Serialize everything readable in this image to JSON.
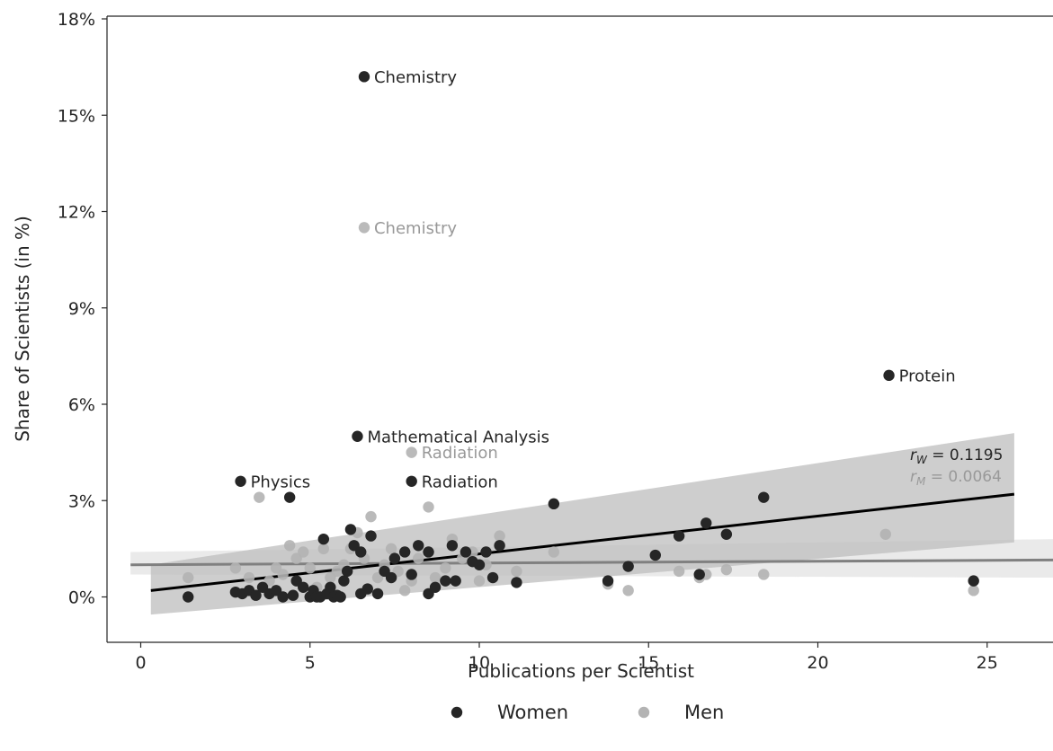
{
  "chart_data": {
    "type": "scatter",
    "xlabel": "Publications per Scientist",
    "ylabel": "Share of Scientists (in %)",
    "xlim": [
      -1,
      27
    ],
    "ylim": [
      -1.3,
      18
    ],
    "xticks": [
      0,
      5,
      10,
      15,
      20,
      25
    ],
    "yticks": [
      0,
      3,
      6,
      9,
      12,
      15,
      18
    ],
    "ytick_format": "%",
    "grid": false,
    "legend": {
      "placement": "bottom-center",
      "entries": [
        "Women",
        "Men"
      ]
    },
    "colors": {
      "women": "#262626",
      "men": "#b3b3b3",
      "women_line": "#000000",
      "men_line": "#808080",
      "women_band": "#bdbdbd",
      "men_band": "#e3e3e3"
    },
    "series": [
      {
        "name": "Women",
        "points": [
          [
            1.4,
            0.0
          ],
          [
            2.8,
            0.15
          ],
          [
            3.0,
            0.1
          ],
          [
            3.2,
            0.2
          ],
          [
            3.4,
            0.05
          ],
          [
            3.6,
            0.3
          ],
          [
            3.8,
            0.1
          ],
          [
            4.0,
            0.2
          ],
          [
            4.2,
            0.0
          ],
          [
            4.4,
            3.1
          ],
          [
            4.5,
            0.05
          ],
          [
            4.6,
            0.5
          ],
          [
            4.8,
            0.3
          ],
          [
            5.0,
            0.0
          ],
          [
            5.1,
            0.2
          ],
          [
            5.2,
            0.0
          ],
          [
            5.3,
            0.0
          ],
          [
            5.4,
            1.8
          ],
          [
            5.5,
            0.1
          ],
          [
            5.6,
            0.3
          ],
          [
            5.7,
            0.0
          ],
          [
            5.8,
            0.05
          ],
          [
            5.9,
            0.0
          ],
          [
            6.0,
            0.5
          ],
          [
            6.1,
            0.8
          ],
          [
            6.2,
            2.1
          ],
          [
            6.3,
            1.6
          ],
          [
            6.5,
            1.4
          ],
          [
            6.5,
            0.1
          ],
          [
            6.7,
            0.25
          ],
          [
            6.8,
            1.9
          ],
          [
            7.0,
            0.1
          ],
          [
            7.2,
            0.8
          ],
          [
            7.4,
            0.6
          ],
          [
            7.5,
            1.2
          ],
          [
            7.8,
            1.4
          ],
          [
            8.0,
            0.7
          ],
          [
            8.2,
            1.6
          ],
          [
            8.5,
            0.1
          ],
          [
            8.5,
            1.4
          ],
          [
            8.7,
            0.3
          ],
          [
            9.0,
            0.5
          ],
          [
            9.2,
            1.6
          ],
          [
            9.3,
            0.5
          ],
          [
            9.6,
            1.4
          ],
          [
            9.8,
            1.1
          ],
          [
            10.0,
            1.0
          ],
          [
            10.2,
            1.4
          ],
          [
            10.4,
            0.6
          ],
          [
            10.6,
            1.6
          ],
          [
            11.1,
            0.45
          ],
          [
            12.2,
            2.9
          ],
          [
            13.8,
            0.5
          ],
          [
            14.4,
            0.95
          ],
          [
            15.2,
            1.3
          ],
          [
            15.9,
            1.9
          ],
          [
            16.5,
            0.7
          ],
          [
            16.7,
            2.3
          ],
          [
            17.3,
            1.95
          ],
          [
            18.4,
            3.1
          ],
          [
            24.6,
            0.5
          ],
          [
            2.95,
            3.6
          ],
          [
            6.6,
            16.2
          ],
          [
            6.4,
            5.0
          ],
          [
            8.0,
            3.6
          ],
          [
            22.1,
            6.9
          ]
        ],
        "annotations": [
          {
            "text": "Physics",
            "x": 2.95,
            "y": 3.6
          },
          {
            "text": "Chemistry",
            "x": 6.6,
            "y": 16.2
          },
          {
            "text": "Mathematical Analysis",
            "x": 6.4,
            "y": 5.0
          },
          {
            "text": "Radiation",
            "x": 8.0,
            "y": 3.6
          },
          {
            "text": "Protein",
            "x": 22.1,
            "y": 6.9
          }
        ],
        "regression": {
          "x0": 0.3,
          "y0": 0.2,
          "x1": 25.8,
          "y1": 3.2,
          "ci_upper": [
            1.0,
            5.1
          ],
          "ci_lower": [
            -0.55,
            1.7
          ]
        },
        "r_label": "rW = 0.1195"
      },
      {
        "name": "Men",
        "points": [
          [
            1.4,
            0.6
          ],
          [
            2.8,
            0.9
          ],
          [
            3.2,
            0.6
          ],
          [
            3.5,
            3.1
          ],
          [
            3.8,
            0.5
          ],
          [
            4.0,
            0.9
          ],
          [
            4.2,
            0.7
          ],
          [
            4.4,
            1.6
          ],
          [
            4.6,
            1.2
          ],
          [
            4.8,
            1.4
          ],
          [
            5.0,
            0.9
          ],
          [
            5.2,
            0.3
          ],
          [
            5.4,
            1.5
          ],
          [
            5.6,
            0.6
          ],
          [
            5.8,
            0.8
          ],
          [
            6.0,
            1.0
          ],
          [
            6.2,
            1.5
          ],
          [
            6.4,
            2.0
          ],
          [
            6.6,
            1.2
          ],
          [
            6.8,
            2.5
          ],
          [
            7.0,
            0.6
          ],
          [
            7.2,
            1.0
          ],
          [
            7.4,
            1.5
          ],
          [
            7.6,
            0.8
          ],
          [
            7.8,
            0.2
          ],
          [
            8.0,
            0.5
          ],
          [
            8.2,
            1.2
          ],
          [
            8.5,
            2.8
          ],
          [
            8.7,
            0.6
          ],
          [
            9.0,
            0.9
          ],
          [
            9.2,
            1.8
          ],
          [
            9.5,
            1.2
          ],
          [
            9.8,
            1.4
          ],
          [
            10.0,
            0.5
          ],
          [
            10.2,
            1.0
          ],
          [
            10.6,
            1.9
          ],
          [
            11.1,
            0.8
          ],
          [
            12.2,
            1.4
          ],
          [
            13.8,
            0.4
          ],
          [
            14.4,
            0.2
          ],
          [
            15.2,
            1.3
          ],
          [
            15.9,
            0.8
          ],
          [
            16.5,
            0.6
          ],
          [
            16.7,
            0.7
          ],
          [
            17.3,
            0.85
          ],
          [
            18.4,
            0.7
          ],
          [
            22.0,
            1.95
          ],
          [
            24.6,
            0.2
          ],
          [
            6.6,
            11.5
          ],
          [
            8.0,
            4.5
          ]
        ],
        "annotations": [
          {
            "text": "Chemistry",
            "x": 6.6,
            "y": 11.5
          },
          {
            "text": "Radiation",
            "x": 8.0,
            "y": 4.5
          }
        ],
        "regression": {
          "x0": -0.3,
          "y0": 1.0,
          "x1": 27.0,
          "y1": 1.15,
          "ci_upper": [
            1.4,
            1.8
          ],
          "ci_lower": [
            0.7,
            0.6
          ]
        },
        "r_label": "rM = 0.0064"
      }
    ]
  }
}
